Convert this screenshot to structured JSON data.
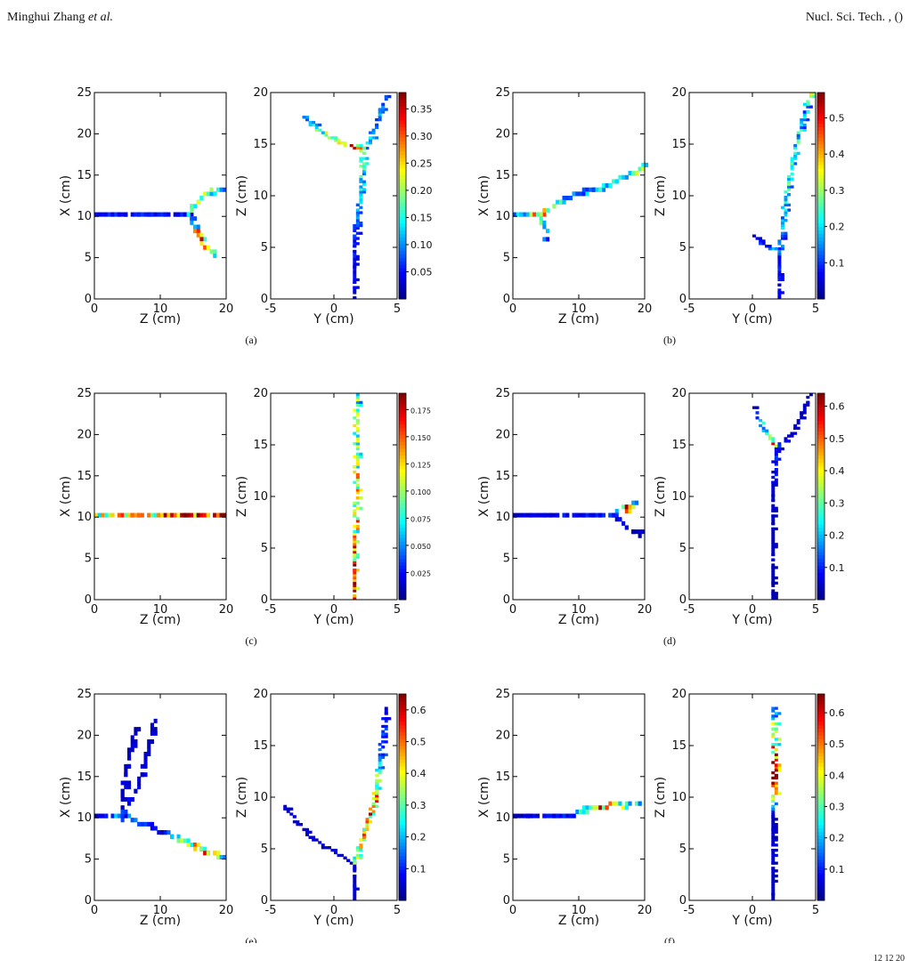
{
  "header": {
    "authors": "Minghui Zhang",
    "etal": "et al.",
    "journal": "Nucl. Sci. Tech. , ()"
  },
  "caption_fragment": "12    12       20",
  "colormap": [
    "#00007f",
    "#0000ff",
    "#007fff",
    "#00ffff",
    "#7fff7f",
    "#ffff00",
    "#ff7f00",
    "#ff0000",
    "#7f0000"
  ],
  "chart_data": [
    {
      "panel": "(a)",
      "type": "heatmap",
      "left": {
        "xlabel": "Z (cm)",
        "ylabel": "X (cm)",
        "xlim": [
          0,
          20
        ],
        "ylim": [
          0,
          25
        ],
        "xticks": [
          0,
          10,
          20
        ],
        "yticks": [
          0,
          5,
          10,
          15,
          20,
          25
        ],
        "tracks": [
          {
            "pts": [
              [
                0,
                10
              ],
              [
                14,
                10
              ],
              [
                16,
                7
              ],
              [
                18,
                5
              ]
            ],
            "v": [
              0.05,
              0.05,
              0.3,
              0.1
            ]
          },
          {
            "pts": [
              [
                14,
                10
              ],
              [
                16,
                12
              ],
              [
                19,
                13
              ]
            ],
            "v": [
              0.15,
              0.2,
              0.12
            ]
          }
        ]
      },
      "right": {
        "xlabel": "Y (cm)",
        "ylabel": "Z (cm)",
        "xlim": [
          -5,
          5
        ],
        "ylim": [
          0,
          20
        ],
        "xticks": [
          -5,
          0,
          5
        ],
        "yticks": [
          0,
          5,
          10,
          15,
          20
        ],
        "tracks": [
          {
            "pts": [
              [
                1.5,
                0
              ],
              [
                1.5,
                6
              ],
              [
                2,
                10
              ],
              [
                2.2,
                14.5
              ]
            ],
            "v": [
              0.03,
              0.06,
              0.12,
              0.15
            ]
          },
          {
            "pts": [
              [
                2.2,
                14.5
              ],
              [
                0.5,
                15
              ],
              [
                -1,
                16
              ],
              [
                -2.5,
                17.5
              ]
            ],
            "v": [
              0.32,
              0.25,
              0.18,
              0.08
            ]
          },
          {
            "pts": [
              [
                2.2,
                14.5
              ],
              [
                3,
                16
              ],
              [
                4,
                19.5
              ]
            ],
            "v": [
              0.15,
              0.1,
              0.08
            ]
          }
        ]
      },
      "colorbar": {
        "range": [
          0,
          0.38
        ],
        "ticks": [
          "0.05",
          "0.10",
          "0.15",
          "0.20",
          "0.25",
          "0.30",
          "0.35"
        ],
        "values": [
          0.05,
          0.1,
          0.15,
          0.2,
          0.25,
          0.3,
          0.35
        ]
      }
    },
    {
      "panel": "(b)",
      "type": "heatmap",
      "left": {
        "xlabel": "Z (cm)",
        "ylabel": "X (cm)",
        "xlim": [
          0,
          20
        ],
        "ylim": [
          0,
          25
        ],
        "xticks": [
          0,
          10,
          20
        ],
        "yticks": [
          0,
          5,
          10,
          15,
          20,
          25
        ],
        "tracks": [
          {
            "pts": [
              [
                0,
                10
              ],
              [
                4,
                10
              ],
              [
                8,
                12
              ],
              [
                14,
                13.5
              ],
              [
                20,
                16
              ]
            ],
            "v": [
              0.15,
              0.4,
              0.1,
              0.2,
              0.3
            ]
          },
          {
            "pts": [
              [
                4,
                10
              ],
              [
                5,
                7
              ]
            ],
            "v": [
              0.25,
              0.1
            ]
          }
        ]
      },
      "right": {
        "xlabel": "Y (cm)",
        "ylabel": "Z (cm)",
        "xlim": [
          -5,
          5
        ],
        "ylim": [
          0,
          20
        ],
        "xticks": [
          -5,
          0,
          5
        ],
        "yticks": [
          0,
          5,
          10,
          15,
          20
        ],
        "tracks": [
          {
            "pts": [
              [
                2,
                0
              ],
              [
                2,
                4
              ],
              [
                2.5,
                9
              ],
              [
                3,
                13
              ],
              [
                4,
                18
              ],
              [
                4.5,
                19.8
              ]
            ],
            "v": [
              0.05,
              0.1,
              0.2,
              0.25,
              0.15,
              0.3
            ]
          },
          {
            "pts": [
              [
                2,
                4.5
              ],
              [
                1,
                5
              ],
              [
                0,
                6
              ]
            ],
            "v": [
              0.25,
              0.1,
              0.05
            ]
          }
        ]
      },
      "colorbar": {
        "range": [
          0,
          0.57
        ],
        "ticks": [
          "0.1",
          "0.2",
          "0.3",
          "0.4",
          "0.5"
        ],
        "values": [
          0.1,
          0.2,
          0.3,
          0.4,
          0.5
        ]
      }
    },
    {
      "panel": "(c)",
      "type": "heatmap",
      "left": {
        "xlabel": "Z (cm)",
        "ylabel": "X (cm)",
        "xlim": [
          0,
          20
        ],
        "ylim": [
          0,
          25
        ],
        "xticks": [
          0,
          10,
          20
        ],
        "yticks": [
          0,
          5,
          10,
          15,
          20,
          25
        ],
        "tracks": [
          {
            "pts": [
              [
                0,
                10
              ],
              [
                20,
                10
              ]
            ],
            "v": [
              0.1,
              0.18
            ]
          }
        ]
      },
      "right": {
        "xlabel": "Y (cm)",
        "ylabel": "Z (cm)",
        "xlim": [
          -5,
          5
        ],
        "ylim": [
          0,
          20
        ],
        "xticks": [
          -5,
          0,
          5
        ],
        "yticks": [
          0,
          5,
          10,
          15,
          20
        ],
        "tracks": [
          {
            "pts": [
              [
                1.5,
                0
              ],
              [
                1.7,
                20
              ]
            ],
            "v": [
              0.15,
              0.08
            ]
          }
        ]
      },
      "colorbar": {
        "range": [
          0,
          0.19
        ],
        "ticks": [
          "0.025",
          "0.050",
          "0.075",
          "0.100",
          "0.125",
          "0.150",
          "0.175"
        ],
        "values": [
          0.025,
          0.05,
          0.075,
          0.1,
          0.125,
          0.15,
          0.175
        ]
      }
    },
    {
      "panel": "(d)",
      "type": "heatmap",
      "left": {
        "xlabel": "Z (cm)",
        "ylabel": "X (cm)",
        "xlim": [
          0,
          20
        ],
        "ylim": [
          0,
          25
        ],
        "xticks": [
          0,
          10,
          20
        ],
        "yticks": [
          0,
          5,
          10,
          15,
          20,
          25
        ],
        "tracks": [
          {
            "pts": [
              [
                0,
                10
              ],
              [
                15,
                10
              ],
              [
                17,
                11
              ],
              [
                18,
                11.5
              ]
            ],
            "v": [
              0.05,
              0.1,
              0.5,
              0.3
            ]
          },
          {
            "pts": [
              [
                15,
                10
              ],
              [
                18,
                8
              ],
              [
                20,
                7.5
              ]
            ],
            "v": [
              0.1,
              0.05,
              0.05
            ]
          }
        ]
      },
      "right": {
        "xlabel": "Y (cm)",
        "ylabel": "Z (cm)",
        "xlim": [
          -5,
          5
        ],
        "ylim": [
          0,
          20
        ],
        "xticks": [
          -5,
          0,
          5
        ],
        "yticks": [
          0,
          5,
          10,
          15,
          20
        ],
        "tracks": [
          {
            "pts": [
              [
                1.5,
                0
              ],
              [
                1.5,
                10
              ],
              [
                1.8,
                14.5
              ]
            ],
            "v": [
              0.03,
              0.05,
              0.1
            ]
          },
          {
            "pts": [
              [
                1.8,
                14.5
              ],
              [
                1,
                16
              ],
              [
                0,
                18.5
              ]
            ],
            "v": [
              0.55,
              0.3,
              0.05
            ]
          },
          {
            "pts": [
              [
                1.8,
                14.5
              ],
              [
                3,
                16
              ],
              [
                4.5,
                19.8
              ]
            ],
            "v": [
              0.1,
              0.05,
              0.05
            ]
          }
        ]
      },
      "colorbar": {
        "range": [
          0,
          0.64
        ],
        "ticks": [
          "0.1",
          "0.2",
          "0.3",
          "0.4",
          "0.5",
          "0.6"
        ],
        "values": [
          0.1,
          0.2,
          0.3,
          0.4,
          0.5,
          0.6
        ]
      }
    },
    {
      "panel": "(e)",
      "type": "heatmap",
      "left": {
        "xlabel": "Z (cm)",
        "ylabel": "X (cm)",
        "xlim": [
          0,
          20
        ],
        "ylim": [
          0,
          25
        ],
        "xticks": [
          0,
          10,
          20
        ],
        "yticks": [
          0,
          5,
          10,
          15,
          20,
          25
        ],
        "tracks": [
          {
            "pts": [
              [
                0,
                10
              ],
              [
                4,
                10
              ],
              [
                10,
                8
              ],
              [
                16,
                6
              ],
              [
                19,
                5
              ]
            ],
            "v": [
              0.05,
              0.2,
              0.05,
              0.5,
              0.25
            ]
          },
          {
            "pts": [
              [
                4,
                10
              ],
              [
                4,
                13
              ],
              [
                6,
                20.5
              ]
            ],
            "v": [
              0.05,
              0.05,
              0.05
            ]
          },
          {
            "pts": [
              [
                4,
                10
              ],
              [
                7,
                15
              ],
              [
                9,
                21.5
              ]
            ],
            "v": [
              0.1,
              0.05,
              0.05
            ]
          }
        ]
      },
      "right": {
        "xlabel": "Y (cm)",
        "ylabel": "Z (cm)",
        "xlim": [
          -5,
          5
        ],
        "ylim": [
          0,
          20
        ],
        "xticks": [
          -5,
          0,
          5
        ],
        "yticks": [
          0,
          5,
          10,
          15,
          20
        ],
        "tracks": [
          {
            "pts": [
              [
                1.5,
                0
              ],
              [
                1.5,
                3.5
              ]
            ],
            "v": [
              0.05,
              0.05
            ]
          },
          {
            "pts": [
              [
                1.5,
                3.5
              ],
              [
                -2,
                6
              ],
              [
                -4,
                9
              ]
            ],
            "v": [
              0.05,
              0.05,
              0.05
            ]
          },
          {
            "pts": [
              [
                1.5,
                3.5
              ],
              [
                3,
                9
              ],
              [
                3.5,
                13
              ],
              [
                4,
                18.5
              ]
            ],
            "v": [
              0.3,
              0.5,
              0.2,
              0.05
            ]
          }
        ]
      },
      "colorbar": {
        "range": [
          0,
          0.65
        ],
        "ticks": [
          "0.1",
          "0.2",
          "0.3",
          "0.4",
          "0.5",
          "0.6"
        ],
        "values": [
          0.1,
          0.2,
          0.3,
          0.4,
          0.5,
          0.6
        ]
      }
    },
    {
      "panel": "(f)",
      "type": "heatmap",
      "left": {
        "xlabel": "Z (cm)",
        "ylabel": "X (cm)",
        "xlim": [
          0,
          20
        ],
        "ylim": [
          0,
          25
        ],
        "xticks": [
          0,
          10,
          20
        ],
        "yticks": [
          0,
          5,
          10,
          15,
          20,
          25
        ],
        "tracks": [
          {
            "pts": [
              [
                0,
                10
              ],
              [
                9,
                10
              ],
              [
                12,
                11
              ],
              [
                19,
                11.5
              ]
            ],
            "v": [
              0.05,
              0.1,
              0.5,
              0.2
            ]
          }
        ]
      },
      "right": {
        "xlabel": "Y (cm)",
        "ylabel": "Z (cm)",
        "xlim": [
          -5,
          5
        ],
        "ylim": [
          0,
          20
        ],
        "xticks": [
          -5,
          0,
          5
        ],
        "yticks": [
          0,
          5,
          10,
          15,
          20
        ],
        "tracks": [
          {
            "pts": [
              [
                1.5,
                0
              ],
              [
                1.5,
                8
              ],
              [
                1.7,
                12
              ],
              [
                1.6,
                18.5
              ]
            ],
            "v": [
              0.05,
              0.05,
              0.6,
              0.2
            ]
          }
        ]
      },
      "colorbar": {
        "range": [
          0,
          0.66
        ],
        "ticks": [
          "0.1",
          "0.2",
          "0.3",
          "0.4",
          "0.5",
          "0.6"
        ],
        "values": [
          0.1,
          0.2,
          0.3,
          0.4,
          0.5,
          0.6
        ]
      }
    }
  ]
}
